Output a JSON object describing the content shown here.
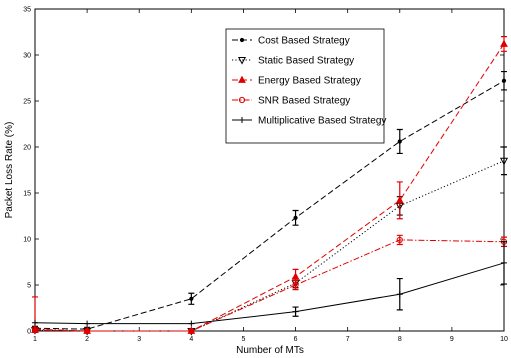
{
  "chart_data": {
    "type": "line",
    "title": "",
    "xlabel": "Number of MTs",
    "ylabel": "Packet Loss Rate (%)",
    "xlim": [
      1,
      10
    ],
    "ylim": [
      0,
      35
    ],
    "xticks": [
      1,
      2,
      3,
      4,
      5,
      6,
      7,
      8,
      9,
      10
    ],
    "yticks": [
      0,
      5,
      10,
      15,
      20,
      25,
      30,
      35
    ],
    "grid": false,
    "legend_position": "top-center",
    "series": [
      {
        "name": "Cost Based Strategy",
        "color": "#000000",
        "dash": "dashed",
        "marker": "dot",
        "x": [
          1,
          2,
          4,
          6,
          8,
          10
        ],
        "y": [
          0.3,
          0.2,
          3.5,
          12.3,
          20.6,
          27.2
        ],
        "err": [
          0.2,
          0.2,
          0.6,
          0.8,
          1.3,
          1.0
        ]
      },
      {
        "name": "Static Based Strategy",
        "color": "#000000",
        "dash": "dotted",
        "marker": "triangle-down",
        "x": [
          1,
          2,
          4,
          6,
          8,
          10
        ],
        "y": [
          0.1,
          0.0,
          0.0,
          5.2,
          13.6,
          18.5
        ],
        "err": [
          0.1,
          0.1,
          0.1,
          0.5,
          1.0,
          1.5
        ]
      },
      {
        "name": "Energy Based Strategy",
        "color": "#e00000",
        "dash": "dashed",
        "marker": "triangle-up",
        "x": [
          1,
          2,
          4,
          6,
          8,
          10
        ],
        "y": [
          0.1,
          0.0,
          0.0,
          5.9,
          14.2,
          31.2
        ],
        "err": [
          0.1,
          0.1,
          0.1,
          0.8,
          2.0,
          0.8
        ]
      },
      {
        "name": "SNR Based Strategy",
        "color": "#e00000",
        "dash": "dashdot",
        "marker": "circle",
        "x": [
          1,
          2,
          4,
          6,
          8,
          10
        ],
        "y": [
          0.2,
          0.0,
          0.0,
          5.0,
          9.9,
          9.7
        ],
        "err": [
          3.5,
          0.1,
          0.1,
          0.5,
          0.5,
          0.5
        ]
      },
      {
        "name": "Multiplicative Based Strategy",
        "color": "#000000",
        "dash": "solid",
        "marker": "plus",
        "x": [
          1,
          2,
          4,
          6,
          8,
          10
        ],
        "y": [
          0.9,
          0.8,
          0.8,
          2.1,
          4.0,
          7.4
        ],
        "err": [
          0.1,
          0.1,
          0.1,
          0.5,
          1.7,
          2.3
        ]
      }
    ]
  }
}
